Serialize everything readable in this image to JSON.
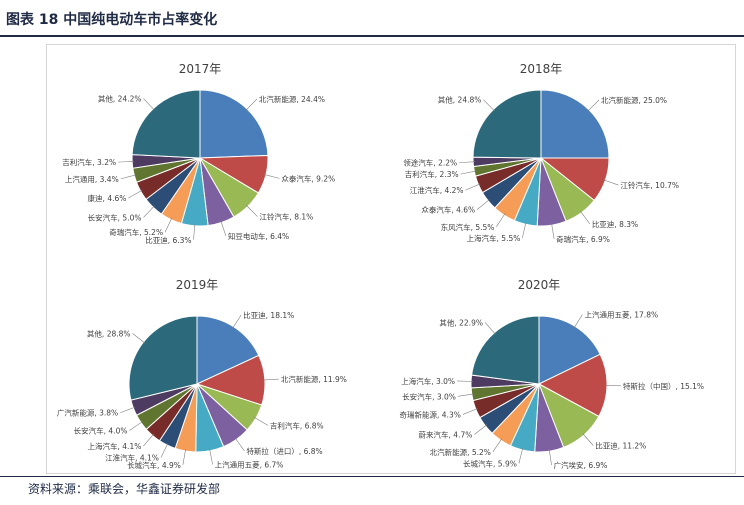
{
  "figure_title": "图表 18 中国纯电动车市占率变化",
  "source": "资料来源：乘联会，华鑫证券研发部",
  "colors": [
    "#4a7ebb",
    "#be4b48",
    "#98b954",
    "#7d60a0",
    "#46aac5",
    "#f59d56",
    "#2c4d75",
    "#772c2a",
    "#5f7530",
    "#4d3b62",
    "#276a7c",
    "#b65708",
    "#2c6a7b"
  ],
  "chart_data": [
    {
      "type": "pie",
      "title": "2017年",
      "slices": [
        {
          "label": "北汽新能源, 24.4%",
          "value": 24.4
        },
        {
          "label": "众泰汽车, 9.2%",
          "value": 9.2
        },
        {
          "label": "江铃汽车, 8.1%",
          "value": 8.1
        },
        {
          "label": "知豆电动车, 6.4%",
          "value": 6.4
        },
        {
          "label": "比亚迪, 6.3%",
          "value": 6.3
        },
        {
          "label": "奇瑞汽车, 5.2%",
          "value": 5.2
        },
        {
          "label": "长安汽车, 5.0%",
          "value": 5.0
        },
        {
          "label": "康迪, 4.6%",
          "value": 4.6
        },
        {
          "label": "上汽通用, 3.4%",
          "value": 3.4
        },
        {
          "label": "吉利汽车, 3.2%",
          "value": 3.2
        },
        {
          "label": "其他, 24.2%",
          "value": 24.2
        }
      ]
    },
    {
      "type": "pie",
      "title": "2018年",
      "slices": [
        {
          "label": "北汽新能源, 25.0%",
          "value": 25.0
        },
        {
          "label": "江铃汽车, 10.7%",
          "value": 10.7
        },
        {
          "label": "比亚迪, 8.3%",
          "value": 8.3
        },
        {
          "label": "奇瑞汽车, 6.9%",
          "value": 6.9
        },
        {
          "label": "上海汽车, 5.5%",
          "value": 5.5
        },
        {
          "label": "东风汽车, 5.5%",
          "value": 5.5
        },
        {
          "label": "众泰汽车, 4.6%",
          "value": 4.6
        },
        {
          "label": "江淮汽车, 4.2%",
          "value": 4.2
        },
        {
          "label": "吉利汽车, 2.3%",
          "value": 2.3
        },
        {
          "label": "领途汽车, 2.2%",
          "value": 2.2
        },
        {
          "label": "其他, 24.8%",
          "value": 24.8
        }
      ]
    },
    {
      "type": "pie",
      "title": "2019年",
      "slices": [
        {
          "label": "比亚迪, 18.1%",
          "value": 18.1
        },
        {
          "label": "北汽新能源, 11.9%",
          "value": 11.9
        },
        {
          "label": "吉利汽车, 6.8%",
          "value": 6.8
        },
        {
          "label": "特斯拉（进口）, 6.8%",
          "value": 6.8
        },
        {
          "label": "上汽通用五菱, 6.7%",
          "value": 6.7
        },
        {
          "label": "长城汽车, 4.9%",
          "value": 4.9
        },
        {
          "label": "江淮汽车, 4.1%",
          "value": 4.1
        },
        {
          "label": "上海汽车, 4.1%",
          "value": 4.1
        },
        {
          "label": "长安汽车, 4.0%",
          "value": 4.0
        },
        {
          "label": "广汽新能源, 3.8%",
          "value": 3.8
        },
        {
          "label": "其他, 28.8%",
          "value": 28.8
        }
      ]
    },
    {
      "type": "pie",
      "title": "2020年",
      "slices": [
        {
          "label": "上汽通用五菱, 17.8%",
          "value": 17.8
        },
        {
          "label": "特斯拉（中国）, 15.1%",
          "value": 15.1
        },
        {
          "label": "比亚迪, 11.2%",
          "value": 11.2
        },
        {
          "label": "广汽埃安, 6.9%",
          "value": 6.9
        },
        {
          "label": "长城汽车, 5.9%",
          "value": 5.9
        },
        {
          "label": "北汽新能源, 5.2%",
          "value": 5.2
        },
        {
          "label": "蔚来汽车, 4.7%",
          "value": 4.7
        },
        {
          "label": "奇瑞新能源, 4.3%",
          "value": 4.3
        },
        {
          "label": "长安汽车, 3.0%",
          "value": 3.0
        },
        {
          "label": "上海汽车, 3.0%",
          "value": 3.0
        },
        {
          "label": "其他, 22.9%",
          "value": 22.9
        }
      ]
    }
  ]
}
